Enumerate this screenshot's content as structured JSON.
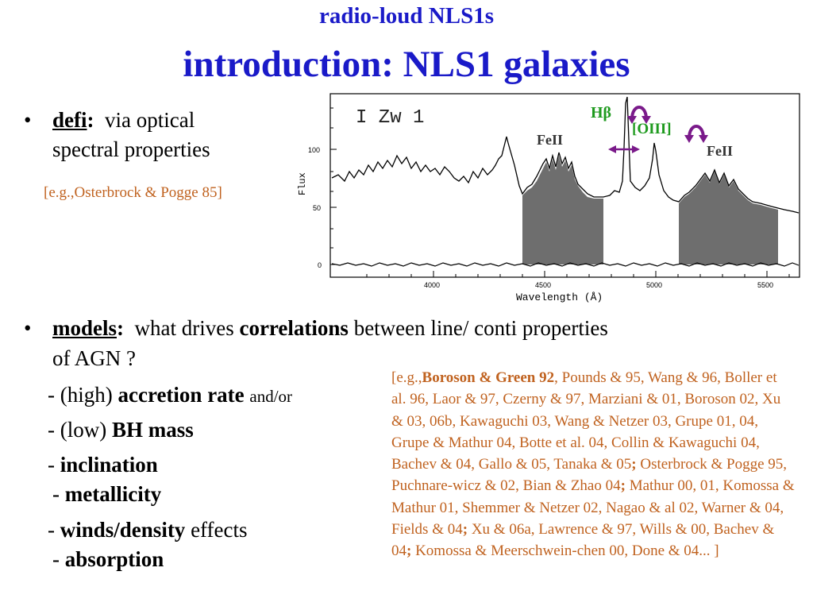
{
  "header": {
    "supertitle": "radio-loud NLS1s",
    "title": "introduction: NLS1 galaxies"
  },
  "bullet1": {
    "term": "defi",
    "colon": ":",
    "text_line1": "via optical",
    "text_line2": "spectral properties",
    "reference": "[e.g.,Osterbrock & Pogge 85]"
  },
  "spectrum": {
    "object_label": "I  Zw  1",
    "y_axis_label": "Flux",
    "x_axis_label": "Wavelength (Å)",
    "y_ticks": [
      "100",
      "50",
      "0"
    ],
    "x_ticks": [
      "4000",
      "4500",
      "5000",
      "5500"
    ],
    "feii_left": "FeII",
    "feii_right": "FeII",
    "hbeta": "Hβ",
    "oiii": "[OIII]",
    "colors": {
      "hbeta": "#1e9a1e",
      "oiii": "#1e9a1e",
      "arrows": "#7a1a8a",
      "fill": "#6e6e6e"
    }
  },
  "bullet2": {
    "term": "models",
    "colon": ":",
    "text_a": "what drives",
    "bold_word": "correlations",
    "text_b": "between line/ conti properties",
    "text_line2": "of AGN ?"
  },
  "drivers": [
    {
      "prefix": "- (high)",
      "bold": "accretion rate",
      "suffix": "and/or"
    },
    {
      "prefix": "- (low)",
      "bold": "BH mass",
      "suffix": ""
    },
    {
      "prefix": "-",
      "bold": "inclination",
      "suffix": ""
    },
    {
      "prefix": "-",
      "bold": "metallicity",
      "suffix": ""
    },
    {
      "prefix": "-",
      "bold": "winds/density",
      "suffix": "effects"
    },
    {
      "prefix": "-",
      "bold": "absorption",
      "suffix": ""
    }
  ],
  "references": [
    {
      "bold": false,
      "text": "[e.g.,"
    },
    {
      "bold": true,
      "text": "Boroson & Green 92"
    },
    {
      "bold": false,
      "text": ", Pounds & 95, Wang & 96, Boller et al. 96, Laor & 97, Czerny & 97, Marziani & 01, Boroson 02, Xu & 03, 06b, Kawaguchi 03, Wang & Netzer 03, Grupe 01, 04, Grupe & Mathur 04, Botte et al. 04, Collin & Kawaguchi 04, Bachev & 04, Gallo & 05, Tanaka & 05"
    },
    {
      "bold": true,
      "text": ";"
    },
    {
      "bold": false,
      "text": " Osterbrock & Pogge 95, Puchnare-wicz & 02, Bian & Zhao 04"
    },
    {
      "bold": true,
      "text": ";"
    },
    {
      "bold": false,
      "text": " Mathur 00, 01, Komossa & Mathur 01,  Shemmer & Netzer 02, Nagao & al 02, Warner & 04, Fields & 04"
    },
    {
      "bold": true,
      "text": ";"
    },
    {
      "bold": false,
      "text": " Xu & 06a, Lawrence & 97, Wills & 00, Bachev & 04"
    },
    {
      "bold": true,
      "text": ";"
    },
    {
      "bold": false,
      "text": " Komossa & Meerschwein-chen 00, Done & 04... ]"
    }
  ]
}
